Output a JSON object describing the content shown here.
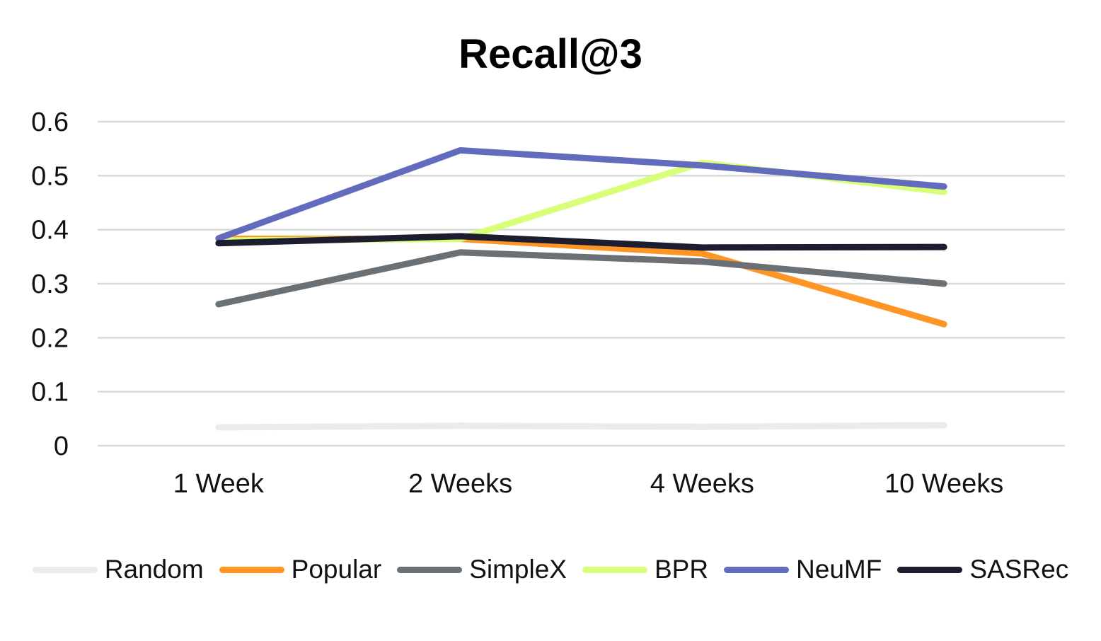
{
  "chart_data": {
    "type": "line",
    "title": "Recall@3",
    "xlabel": "",
    "ylabel": "",
    "categories": [
      "1 Week",
      "2 Weeks",
      "4 Weeks",
      "10 Weeks"
    ],
    "ylim": [
      0,
      0.6
    ],
    "yticks": [
      "0",
      "0.1",
      "0.2",
      "0.3",
      "0.4",
      "0.5",
      "0.6"
    ],
    "grid": true,
    "legend_position": "bottom",
    "series": [
      {
        "name": "Random",
        "color": "#ebebeb",
        "values": [
          0.034,
          0.037,
          0.035,
          0.038
        ]
      },
      {
        "name": "Popular",
        "color": "#ff9525",
        "values": [
          0.383,
          0.383,
          0.356,
          0.225
        ]
      },
      {
        "name": "SimpleX",
        "color": "#6b7075",
        "values": [
          0.262,
          0.358,
          0.341,
          0.3
        ]
      },
      {
        "name": "BPR",
        "color": "#d8ff78",
        "values": [
          0.38,
          0.383,
          0.524,
          0.47
        ]
      },
      {
        "name": "NeuMF",
        "color": "#636bbd",
        "values": [
          0.384,
          0.547,
          0.519,
          0.48
        ]
      },
      {
        "name": "SASRec",
        "color": "#1c1e30",
        "values": [
          0.375,
          0.388,
          0.367,
          0.368
        ]
      }
    ]
  }
}
